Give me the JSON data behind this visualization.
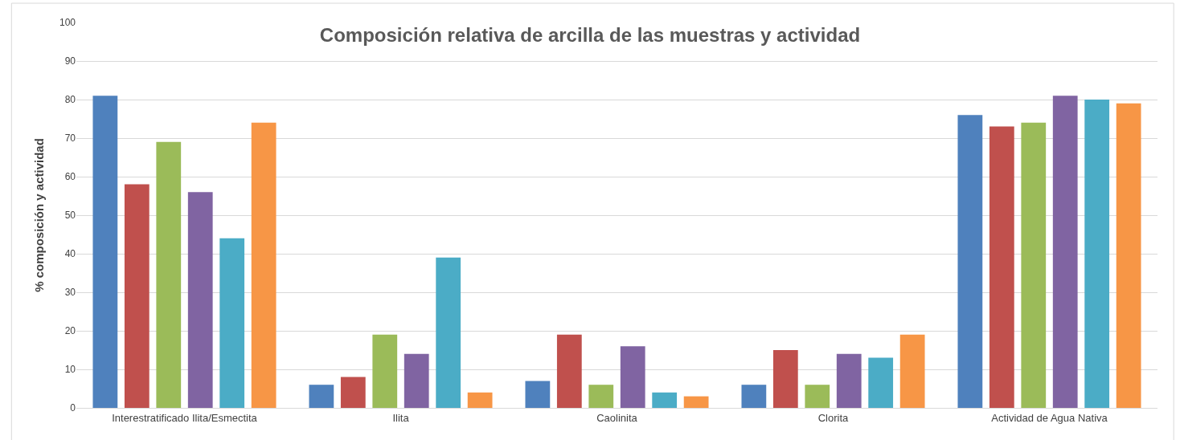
{
  "chart_data": {
    "type": "bar",
    "title": "Composición relativa de arcilla de las muestras y actividad",
    "ylabel": "% composición y actividad",
    "categories": [
      "Interestratificado Ilita/Esmectita",
      "Ilita",
      "Caolinita",
      "Clorita",
      "Actividad de Agua Nativa"
    ],
    "series": [
      {
        "color": "#4f81bd",
        "values": [
          81,
          6,
          7,
          6,
          76
        ]
      },
      {
        "color": "#c0504d",
        "values": [
          58,
          8,
          19,
          15,
          73
        ]
      },
      {
        "color": "#9bbb59",
        "values": [
          69,
          19,
          6,
          6,
          74
        ]
      },
      {
        "color": "#8064a2",
        "values": [
          56,
          14,
          16,
          14,
          81
        ]
      },
      {
        "color": "#4bacc6",
        "values": [
          44,
          39,
          4,
          13,
          80
        ]
      },
      {
        "color": "#f79646",
        "values": [
          74,
          4,
          3,
          19,
          79
        ]
      }
    ],
    "ylim": [
      0,
      100
    ],
    "yticks": [
      0,
      10,
      20,
      30,
      40,
      50,
      60,
      70,
      80,
      90,
      100
    ],
    "grid": "y"
  }
}
